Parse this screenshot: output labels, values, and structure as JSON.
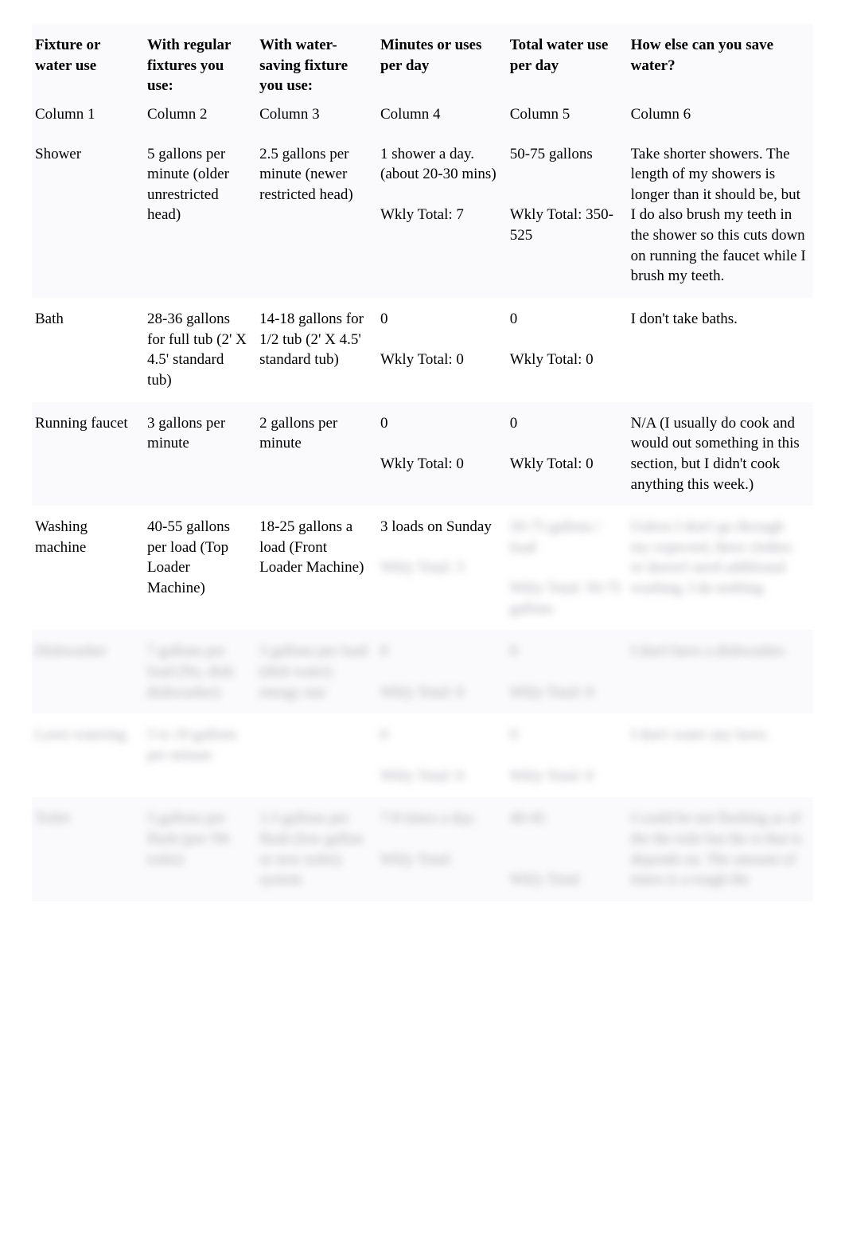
{
  "headers": {
    "c1": "Fixture or water use",
    "c2": "With regular fixtures you use:",
    "c3": "With water-saving fixture you use:",
    "c4": "Minutes or uses per day",
    "c5": "Total water use per day",
    "c6": "How else can you save water?"
  },
  "sublabels": {
    "c1": "Column 1",
    "c2": "Column 2",
    "c3": "Column 3",
    "c4": "Column 4",
    "c5": "Column 5",
    "c6": "Column 6"
  },
  "rows": [
    {
      "c1": "Shower",
      "c2": "5 gallons per minute (older unrestricted head)",
      "c3": "2.5 gallons per minute (newer restricted head)",
      "c4": "1 shower a day. (about 20-30 mins)\n\nWkly Total: 7",
      "c5": "50-75 gallons\n\n\nWkly Total: 350-525",
      "c6": "Take shorter showers. The length of my showers is longer than it should be, but I do also brush my teeth in the shower so this cuts down on running the faucet while I brush my teeth.",
      "blurred": false,
      "odd": true
    },
    {
      "c1": "Bath",
      "c2": "28-36 gallons for full tub (2' X 4.5' standard tub)",
      "c3": "14-18 gallons for 1/2 tub (2' X 4.5' standard tub)",
      "c4": "0\n\nWkly Total: 0",
      "c5": "0\n\nWkly Total: 0",
      "c6": "I don't take baths.",
      "blurred": false,
      "odd": false
    },
    {
      "c1": "Running faucet",
      "c2": "3 gallons per minute",
      "c3": "2 gallons per minute",
      "c4": "0\n\nWkly Total: 0",
      "c5": "0\n\nWkly Total: 0",
      "c6": "N/A (I usually do cook and would out something in this section, but I didn't cook anything this week.)",
      "blurred": false,
      "odd": true
    },
    {
      "c1": "Washing machine",
      "c2": "40-55 gallons per load (Top Loader Machine)",
      "c3": "18-25 gallons a load (Front Loader Machine)",
      "c4": "3 loads on Sunday\n\nWkly Total: 3",
      "c5": "50-75 gallons / load\n\nWkly Total: 50-75 gallons",
      "c6": "Unless I don't go through my expected, there clothes or doesn't need additional washing, I do nothing.",
      "blurred": "partial",
      "blur_from": "c4_line3",
      "odd": false
    },
    {
      "c1": "Dishwasher",
      "c2": "7 gallons per load (No, dish dishwasher)",
      "c3": "5 gallons per load (dish water) energy star",
      "c4": "0\n\nWkly Total: 0",
      "c5": "0\n\nWkly Total: 0",
      "c6": "I don't have a dishwasher.",
      "blurred": true,
      "odd": true
    },
    {
      "c1": "Lawn watering",
      "c2": "5 to 10 gallons per minute",
      "c3": "",
      "c4": "0\n\nWkly Total: 0",
      "c5": "0\n\nWkly Total: 0",
      "c6": "I don't water any lawn.",
      "blurred": true,
      "odd": false
    },
    {
      "c1": "Toilet",
      "c2": "5 gallons per flush (pre-'94 toilet)",
      "c3": "1.5 gallons per flush (low gallon or new toilet) system",
      "c4": "7-8 times a day.\n\nWkly Total:",
      "c5": "40-45\n\n\nWkly Total:",
      "c6": "I could be not flushing as of the the toile but the is that is depends on. The amount of times is a rough the",
      "blurred": true,
      "odd": true
    }
  ]
}
